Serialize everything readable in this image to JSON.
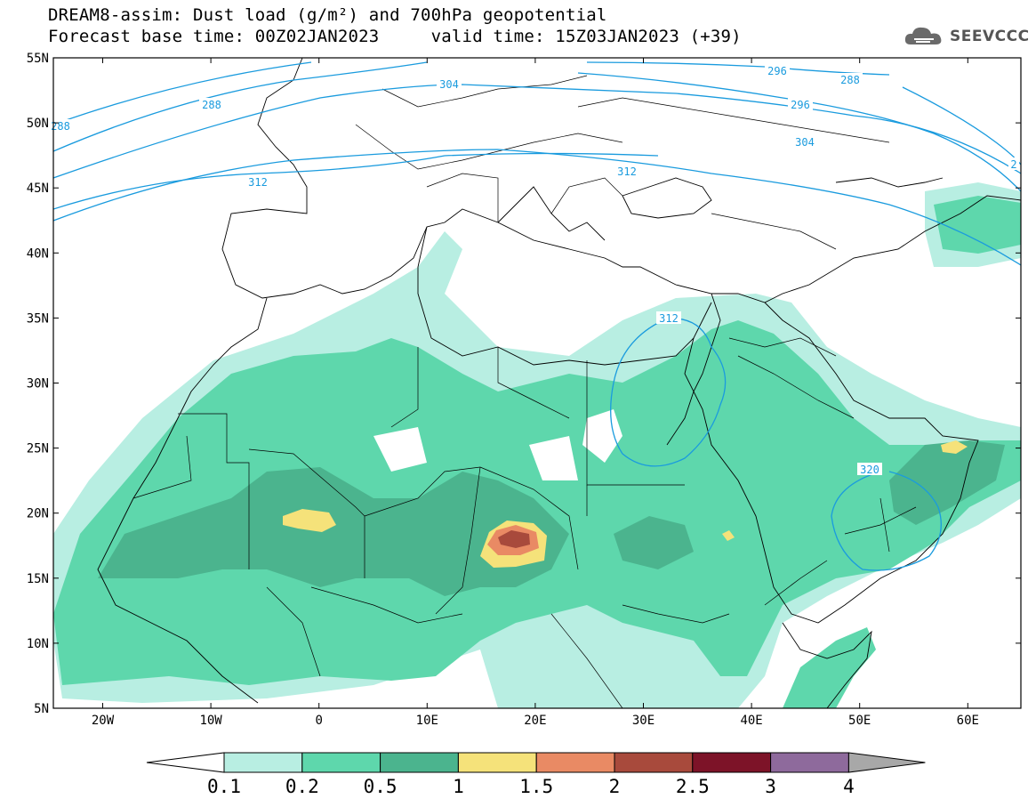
{
  "header": {
    "title_line1": "DREAM8-assim: Dust load (g/m²) and 700hPa geopotential",
    "title_line2": "Forecast base time: 00Z02JAN2023     valid time: 15Z03JAN2023 (+39)",
    "logo_text": "SEEVCCC"
  },
  "map": {
    "lat_labels": [
      "55N",
      "50N",
      "45N",
      "40N",
      "35N",
      "30N",
      "25N",
      "20N",
      "15N",
      "10N",
      "5N"
    ],
    "lon_labels": [
      "20W",
      "10W",
      "0",
      "10E",
      "20E",
      "30E",
      "40E",
      "50E",
      "60E"
    ],
    "contour_labels": [
      {
        "text": "288"
      },
      {
        "text": "288"
      },
      {
        "text": "288"
      },
      {
        "text": "296"
      },
      {
        "text": "296"
      },
      {
        "text": "304"
      },
      {
        "text": "304"
      },
      {
        "text": "312"
      },
      {
        "text": "312"
      },
      {
        "text": "312"
      },
      {
        "text": "320"
      },
      {
        "text": "2"
      }
    ]
  },
  "colorbar": {
    "colors": [
      "#ffffff",
      "#b8eee2",
      "#5ed7ac",
      "#4bb48e",
      "#f5e27a",
      "#e98a64",
      "#a84a3c",
      "#7d1328",
      "#8e6a9c",
      "#a8a8a8"
    ],
    "labels": [
      "0.1",
      "0.2",
      "0.5",
      "1",
      "1.5",
      "2",
      "2.5",
      "3",
      "4"
    ]
  }
}
